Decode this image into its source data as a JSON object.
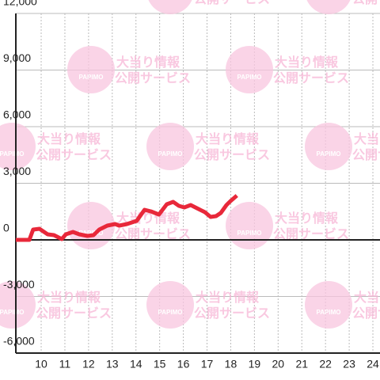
{
  "chart_data": {
    "type": "line",
    "watermark": [
      "大当り情報",
      "公開サービス",
      "PAPIMO"
    ],
    "x": [
      8.93,
      9.5,
      9.66,
      9.93,
      10.27,
      10.54,
      10.87,
      11.04,
      11.34,
      11.61,
      11.95,
      12.21,
      12.45,
      12.79,
      13.12,
      13.29,
      13.62,
      14.03,
      14.36,
      14.63,
      14.97,
      15.3,
      15.57,
      15.81,
      16.04,
      16.31,
      16.64,
      16.91,
      17.15,
      17.38,
      17.58,
      17.82,
      17.99,
      18.26
    ],
    "series": [
      {
        "color": "#e8283a",
        "values": [
          0,
          0,
          545,
          587,
          294,
          252,
          42,
          294,
          420,
          294,
          210,
          252,
          545,
          755,
          839,
          755,
          839,
          1007,
          1594,
          1510,
          1343,
          1888,
          2014,
          1804,
          1720,
          1846,
          1636,
          1469,
          1217,
          1259,
          1427,
          1846,
          2056,
          2350
        ]
      }
    ],
    "xlim": [
      8.93,
      24.3
    ],
    "xticks": [
      10,
      11,
      12,
      13,
      14,
      15,
      16,
      17,
      18,
      19,
      20,
      21,
      22,
      23,
      24
    ],
    "ylim": [
      -6000,
      12000
    ],
    "yticks": [
      {
        "value": -6000,
        "label": "-6,000"
      },
      {
        "value": -3000,
        "label": "-3,000"
      },
      0,
      {
        "value": 3000,
        "label": "3,000"
      },
      {
        "value": 6000,
        "label": "6,000"
      },
      {
        "value": 9000,
        "label": "9,000"
      },
      {
        "value": 12000,
        "label": "12,000"
      }
    ],
    "grid": true
  }
}
